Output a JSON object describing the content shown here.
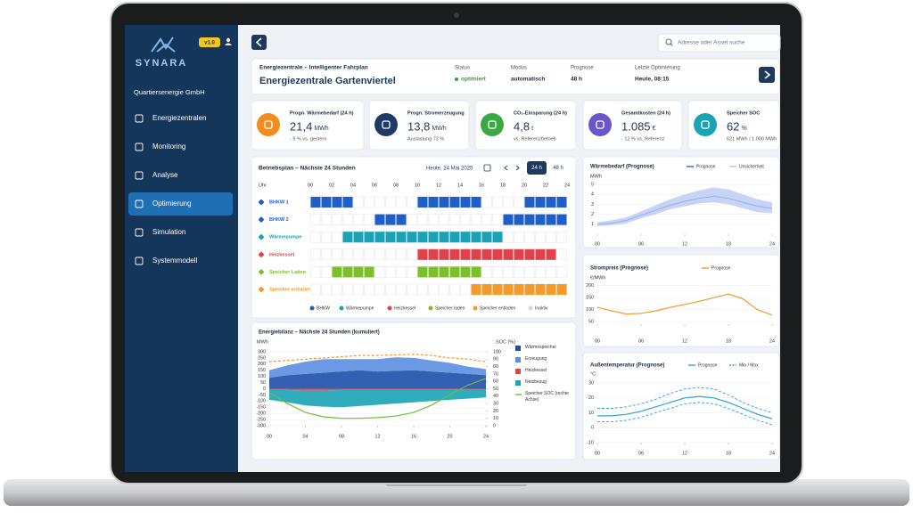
{
  "sidebar": {
    "brand": "SYNARA",
    "version": "v1.0",
    "organization": "Quartiersenergie GmbH",
    "nav": [
      "Energiezentralen",
      "Monitoring",
      "Analyse",
      "Optimierung",
      "Simulation",
      "Systemmodell"
    ],
    "active": 3
  },
  "search_placeholder": "Adresse oder Asset suche",
  "header": {
    "subtitle": "Energiezentrale – Intelligenter Fahrplan",
    "title": "Energiezentrale Gartenviertel",
    "fields": [
      {
        "label": "Status",
        "value": "optimiert"
      },
      {
        "label": "Modus",
        "value": "automatisch"
      },
      {
        "label": "Prognose",
        "value": "48 h"
      },
      {
        "label": "Letzte Optimierung",
        "value": "Heute, 08:15"
      }
    ]
  },
  "kpis": [
    {
      "label": "Progn. Wärmebedarf (24 h)",
      "value": "21,4",
      "unit": "MWh",
      "note": "- 9 % vs. gestern",
      "color": "#f28c1c"
    },
    {
      "label": "Progn. Stromerzeugung",
      "value": "13,8",
      "unit": "MWh",
      "note": "Auslastung 72 %",
      "color": "#1e3a66"
    },
    {
      "label": "CO₂-Einsparung (24 h)",
      "value": "4,8",
      "unit": "t",
      "note": "vs. Referenzbetrieb",
      "color": "#3aa845"
    },
    {
      "label": "Gesamtkosten (24 h)",
      "value": "1.085",
      "unit": "€",
      "note": "- 12 % vs. Referenz",
      "color": "#6a55c9"
    },
    {
      "label": "Speicher SOC",
      "value": "62",
      "unit": "%",
      "note": "621 MWh / 1.000 MWh",
      "color": "#1aa3b5"
    }
  ],
  "schedule": {
    "title": "Betriebsplan – Nächste 24 Stunden",
    "date": "Heute, 24 Mai 2025",
    "ranges": [
      "24 h",
      "48 h"
    ],
    "axis_label": "Uhr",
    "hours": [
      {
        "value": 0,
        "label": "00"
      },
      {
        "value": 2,
        "label": "02"
      },
      {
        "value": 4,
        "label": "04"
      },
      {
        "value": 6,
        "label": "06"
      },
      {
        "value": 8,
        "label": "08"
      },
      10,
      12,
      14,
      16,
      18,
      20,
      22,
      24
    ],
    "rows": [
      {
        "name": "BHKW 1",
        "color": "#1f5fc9",
        "blocks": [
          [
            0,
            4
          ],
          [
            10,
            16
          ],
          [
            20,
            24
          ]
        ]
      },
      {
        "name": "BHKW 2",
        "color": "#1f5fc9",
        "blocks": [
          [
            6,
            9
          ],
          [
            18,
            24
          ]
        ]
      },
      {
        "name": "Wärmepumpe",
        "color": "#1aa3b5",
        "blocks": [
          [
            3,
            18
          ]
        ]
      },
      {
        "name": "Heizkessel",
        "color": "#e0424b",
        "blocks": [
          [
            10,
            23
          ]
        ]
      },
      {
        "name": "Speicher Laden",
        "color": "#7cbf2a",
        "blocks": [
          [
            2,
            6
          ],
          [
            10,
            16
          ]
        ]
      },
      {
        "name": "Speicher entladen",
        "color": "#f39a2b",
        "blocks": [
          [
            15,
            24
          ]
        ]
      }
    ],
    "legend": [
      {
        "name": "BHKW",
        "color": "#1f5fc9"
      },
      {
        "name": "Wärmepumpe",
        "color": "#1aa3b5"
      },
      {
        "name": "Heizkessel",
        "color": "#e0424b"
      },
      {
        "name": "Speicher laden",
        "color": "#7cbf2a"
      },
      {
        "name": "Speicher entladen",
        "color": "#f39a2b"
      },
      {
        "name": "Inaktiv",
        "color": "#cfd5dd"
      }
    ]
  },
  "chart_data": [
    {
      "type": "line",
      "title": "Wärmebedarf (Prognose)",
      "y_label": "MWh",
      "x": [
        0,
        2,
        4,
        6,
        8,
        10,
        12,
        14,
        16,
        18,
        20,
        22,
        24
      ],
      "xlim": [
        0,
        24
      ],
      "xticks": [
        {
          "value": 0,
          "label": "00"
        },
        {
          "value": 6,
          "label": "06"
        },
        12,
        18,
        24
      ],
      "ylim": [
        0,
        5
      ],
      "yticks": [
        1,
        2,
        3,
        4,
        5
      ],
      "grid": true,
      "series": [
        {
          "name": "Prognose",
          "color": "#2f5fd0",
          "values": [
            1.0,
            1.1,
            1.4,
            1.9,
            2.4,
            2.9,
            3.3,
            3.6,
            3.8,
            3.6,
            3.2,
            2.8,
            2.6
          ]
        },
        {
          "name": "Unsicherheit",
          "color": "#b9c9f2",
          "lower": [
            0.8,
            0.9,
            1.1,
            1.6,
            2.0,
            2.5,
            2.8,
            3.1,
            3.2,
            3.0,
            2.6,
            2.2,
            2.1
          ],
          "upper": [
            1.2,
            1.4,
            1.7,
            2.3,
            2.9,
            3.5,
            4.0,
            4.4,
            4.7,
            4.5,
            4.0,
            3.5,
            3.2
          ]
        }
      ]
    },
    {
      "type": "line",
      "title": "Strompreis (Prognose)",
      "y_label": "€/MWh",
      "x": [
        0,
        2,
        4,
        6,
        8,
        10,
        12,
        14,
        16,
        18,
        20,
        22,
        24
      ],
      "xlim": [
        0,
        24
      ],
      "xticks": [
        {
          "value": 0,
          "label": "00"
        },
        {
          "value": 6,
          "label": "06"
        },
        12,
        18,
        24
      ],
      "ylim": [
        40,
        210
      ],
      "yticks": [
        50,
        100,
        150,
        200
      ],
      "grid": true,
      "series": [
        {
          "name": "Prognose",
          "color": "#f39a2b",
          "values": [
            110,
            95,
            82,
            85,
            95,
            110,
            122,
            135,
            150,
            165,
            145,
            100,
            78
          ]
        }
      ]
    },
    {
      "type": "line",
      "title": "Außentemperatur (Prognose)",
      "y_label": "°C",
      "x": [
        0,
        2,
        4,
        6,
        8,
        10,
        12,
        14,
        16,
        18,
        20,
        22,
        24
      ],
      "xlim": [
        0,
        24
      ],
      "xticks": [
        {
          "value": 0,
          "label": "00"
        },
        {
          "value": 6,
          "label": "06"
        },
        12,
        18,
        24
      ],
      "ylim": [
        -10,
        30
      ],
      "yticks": [
        -10,
        0,
        10,
        20,
        30
      ],
      "grid": true,
      "series": [
        {
          "name": "Prognose",
          "color": "#2aa3cf",
          "values": [
            8,
            8,
            9,
            11,
            14,
            17,
            20,
            21,
            20,
            17,
            13,
            9,
            6
          ]
        },
        {
          "name": "Min / Max",
          "color": "#2aa3cf",
          "dash": true,
          "lower": [
            4,
            4,
            5,
            7,
            10,
            13,
            16,
            17,
            16,
            13,
            9,
            5,
            2
          ],
          "upper": [
            13,
            13,
            14,
            16,
            19,
            23,
            26,
            27,
            26,
            22,
            17,
            13,
            10
          ]
        }
      ]
    },
    {
      "type": "area",
      "title": "Energiebilanz – Nächste 24 Stunden (kumuliert)",
      "y_label": "MWh",
      "y2_label": "SOC (%)",
      "x": [
        0,
        2,
        4,
        6,
        8,
        10,
        12,
        14,
        16,
        18,
        20,
        22,
        24
      ],
      "xlim": [
        0,
        24
      ],
      "xticks": [
        {
          "value": 0,
          "label": "00"
        },
        {
          "value": 4,
          "label": "04"
        },
        {
          "value": 8,
          "label": "08"
        },
        12,
        16,
        20,
        24
      ],
      "ylim": [
        -300,
        300
      ],
      "yticks": [
        -300,
        -250,
        -200,
        -150,
        -100,
        -50,
        0,
        50,
        100,
        150,
        200,
        250,
        300
      ],
      "y2lim": [
        0,
        100
      ],
      "y2ticks": [
        0,
        10,
        20,
        30,
        40,
        50,
        60,
        70,
        80,
        90,
        100
      ],
      "grid": true,
      "series": [
        {
          "name": "Wärmespeicher",
          "color": "#1d4fa8",
          "stack": "pos",
          "values": [
            90,
            110,
            120,
            130,
            140,
            150,
            140,
            145,
            150,
            140,
            130,
            120,
            110
          ]
        },
        {
          "name": "Erzeugung",
          "color": "#5b8ee0",
          "stack": "pos",
          "values": [
            60,
            80,
            100,
            110,
            100,
            90,
            100,
            110,
            100,
            90,
            80,
            60,
            50
          ]
        },
        {
          "name": "Heizkessel",
          "color": "#e0424b",
          "stack": "neg",
          "values": [
            -10,
            -10,
            -15,
            -15,
            -10,
            -10,
            -10,
            -10,
            -10,
            -10,
            -10,
            -10,
            -10
          ]
        },
        {
          "name": "Netzbezug",
          "color": "#1aa3b5",
          "stack": "neg",
          "values": [
            -80,
            -100,
            -120,
            -130,
            -140,
            -130,
            -120,
            -110,
            -100,
            -90,
            -80,
            -70,
            -60
          ]
        },
        {
          "color": "#f39a2b",
          "dash": true,
          "values": [
            220,
            230,
            240,
            250,
            260,
            270,
            270,
            275,
            280,
            270,
            250,
            240,
            220
          ]
        },
        {
          "name": "Speicher SOC (rechte Achse)",
          "color": "#6bbf3a",
          "axis": "y2",
          "values": [
            45,
            30,
            18,
            12,
            10,
            10,
            11,
            13,
            18,
            28,
            42,
            55,
            64
          ]
        }
      ]
    }
  ]
}
